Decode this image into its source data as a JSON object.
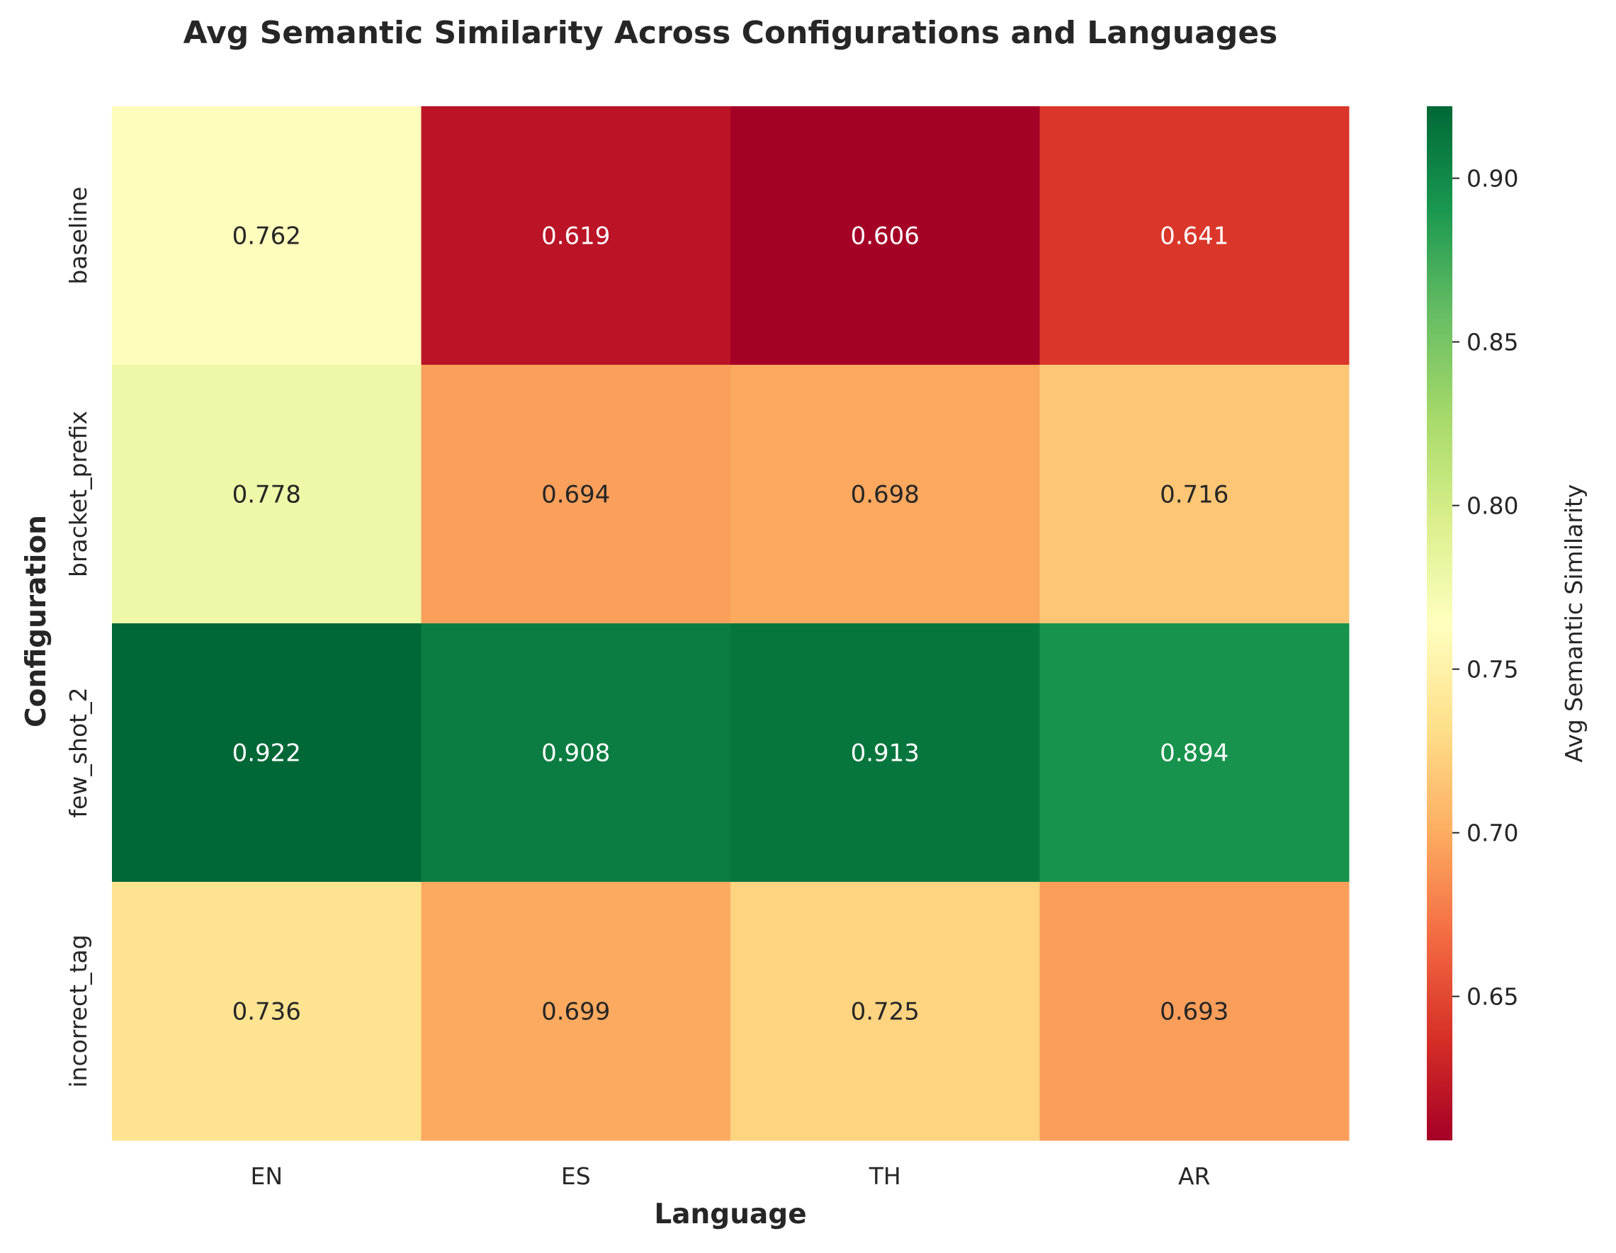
{
  "chart_data": {
    "type": "heatmap",
    "title": "Avg Semantic Similarity Across Configurations and Languages",
    "xlabel": "Language",
    "ylabel": "Configuration",
    "x_categories": [
      "EN",
      "ES",
      "TH",
      "AR"
    ],
    "y_categories": [
      "baseline",
      "bracket_prefix",
      "few_shot_2",
      "incorrect_tag"
    ],
    "values": [
      [
        0.762,
        0.619,
        0.606,
        0.641
      ],
      [
        0.778,
        0.694,
        0.698,
        0.716
      ],
      [
        0.922,
        0.908,
        0.913,
        0.894
      ],
      [
        0.736,
        0.699,
        0.725,
        0.693
      ]
    ],
    "value_labels": [
      [
        "0.762",
        "0.619",
        "0.606",
        "0.641"
      ],
      [
        "0.778",
        "0.694",
        "0.698",
        "0.716"
      ],
      [
        "0.922",
        "0.908",
        "0.913",
        "0.894"
      ],
      [
        "0.736",
        "0.699",
        "0.725",
        "0.693"
      ]
    ],
    "colormap": "RdYlGn",
    "vmin": 0.606,
    "vmax": 0.922,
    "colorbar": {
      "label": "Avg Semantic Similarity",
      "ticks": [
        0.65,
        0.7,
        0.75,
        0.8,
        0.85,
        0.9
      ],
      "tick_labels": [
        "0.65",
        "0.70",
        "0.75",
        "0.80",
        "0.85",
        "0.90"
      ]
    },
    "grid": false
  }
}
